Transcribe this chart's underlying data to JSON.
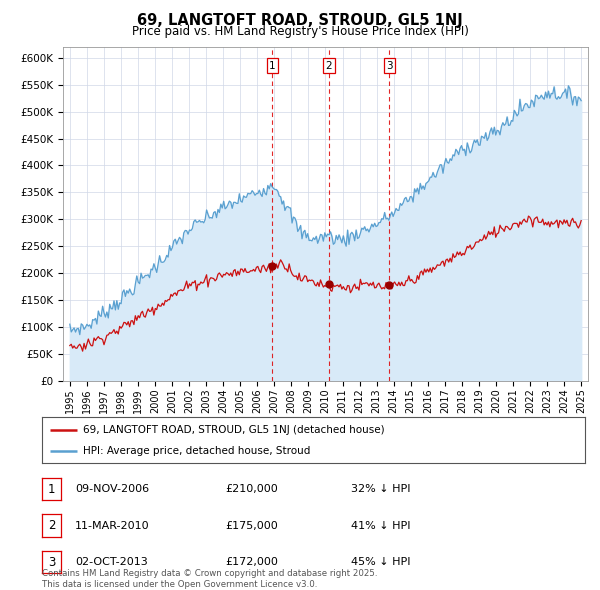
{
  "title": "69, LANGTOFT ROAD, STROUD, GL5 1NJ",
  "subtitle": "Price paid vs. HM Land Registry's House Price Index (HPI)",
  "ylabel_ticks": [
    "£0",
    "£50K",
    "£100K",
    "£150K",
    "£200K",
    "£250K",
    "£300K",
    "£350K",
    "£400K",
    "£450K",
    "£500K",
    "£550K",
    "£600K"
  ],
  "ytick_values": [
    0,
    50000,
    100000,
    150000,
    200000,
    250000,
    300000,
    350000,
    400000,
    450000,
    500000,
    550000,
    600000
  ],
  "ylim": [
    0,
    620000
  ],
  "xlim_start": 1994.6,
  "xlim_end": 2025.4,
  "hpi_color": "#5aa0d0",
  "hpi_fill_color": "#d8eaf8",
  "price_color": "#cc1111",
  "vline_color": "#dd0000",
  "dot_color": "#990000",
  "transactions": [
    {
      "id": 1,
      "year": 2006.87,
      "price": 210000,
      "date": "09-NOV-2006",
      "pct": "32%",
      "dir": "↓"
    },
    {
      "id": 2,
      "year": 2010.2,
      "price": 175000,
      "date": "11-MAR-2010",
      "pct": "41%",
      "dir": "↓"
    },
    {
      "id": 3,
      "year": 2013.75,
      "price": 172000,
      "date": "02-OCT-2013",
      "pct": "45%",
      "dir": "↓"
    }
  ],
  "legend_label_price": "69, LANGTOFT ROAD, STROUD, GL5 1NJ (detached house)",
  "legend_label_hpi": "HPI: Average price, detached house, Stroud",
  "footnote": "Contains HM Land Registry data © Crown copyright and database right 2025.\nThis data is licensed under the Open Government Licence v3.0.",
  "background_color": "#ffffff",
  "grid_color": "#d0d8e8"
}
